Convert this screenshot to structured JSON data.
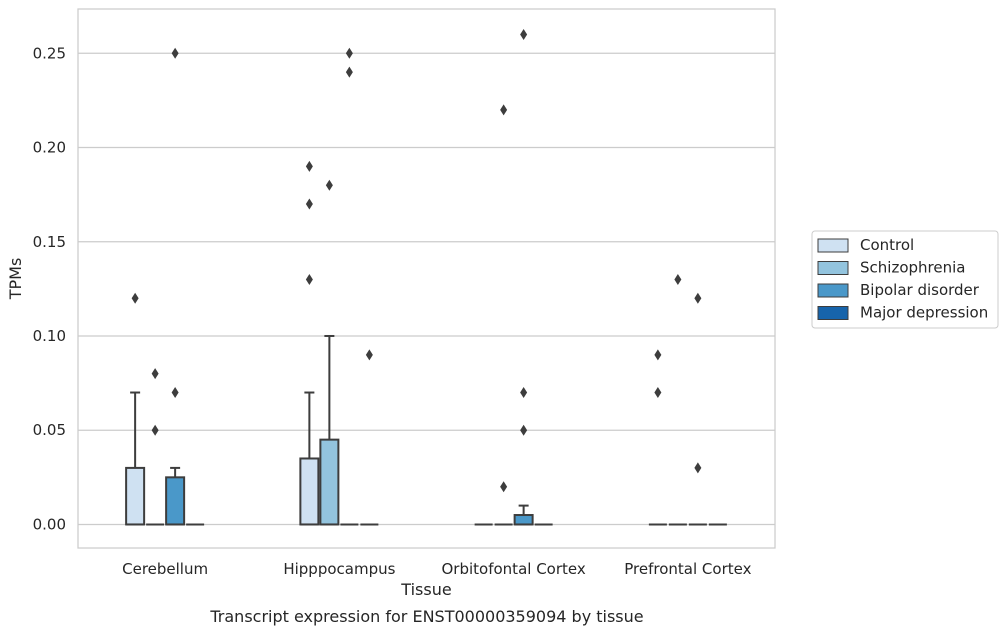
{
  "chart_data": {
    "type": "box",
    "title": "",
    "caption": "Transcript expression for ENST00000359094 by tissue",
    "xlabel": "Tissue",
    "ylabel": "TPMs",
    "ylim": [
      -0.0125,
      0.2735
    ],
    "yticks": [
      "0.00",
      "0.05",
      "0.10",
      "0.15",
      "0.20",
      "0.25"
    ],
    "ytick_values": [
      0,
      0.05,
      0.1,
      0.15,
      0.2,
      0.25
    ],
    "grid": true,
    "legend_position": "right",
    "categories": [
      "Cerebellum",
      "Hipppocampus",
      "Orbitofontal Cortex",
      "Prefrontal Cortex"
    ],
    "series": [
      {
        "name": "Control",
        "color": "#cfe1f2",
        "boxes": [
          {
            "q1": 0,
            "median": 0,
            "q3": 0.03,
            "whisker_low": 0,
            "whisker_high": 0.07,
            "outliers": [
              0.12
            ]
          },
          {
            "q1": 0,
            "median": 0,
            "q3": 0.035,
            "whisker_low": 0,
            "whisker_high": 0.07,
            "outliers": [
              0.13,
              0.17,
              0.19
            ]
          },
          {
            "q1": 0,
            "median": 0,
            "q3": 0,
            "whisker_low": 0,
            "whisker_high": 0,
            "outliers": []
          },
          {
            "q1": 0,
            "median": 0,
            "q3": 0,
            "whisker_low": 0,
            "whisker_high": 0,
            "outliers": [
              0.07,
              0.09
            ]
          }
        ]
      },
      {
        "name": "Schizophrenia",
        "color": "#93c4de",
        "boxes": [
          {
            "q1": 0,
            "median": 0,
            "q3": 0,
            "whisker_low": 0,
            "whisker_high": 0,
            "outliers": [
              0.05,
              0.08
            ]
          },
          {
            "q1": 0,
            "median": 0,
            "q3": 0.045,
            "whisker_low": 0,
            "whisker_high": 0.1,
            "outliers": [
              0.18
            ]
          },
          {
            "q1": 0,
            "median": 0,
            "q3": 0,
            "whisker_low": 0,
            "whisker_high": 0,
            "outliers": [
              0.02,
              0.22
            ]
          },
          {
            "q1": 0,
            "median": 0,
            "q3": 0,
            "whisker_low": 0,
            "whisker_high": 0,
            "outliers": [
              0.13
            ]
          }
        ]
      },
      {
        "name": "Bipolar disorder",
        "color": "#4a98c9",
        "boxes": [
          {
            "q1": 0,
            "median": 0,
            "q3": 0.025,
            "whisker_low": 0,
            "whisker_high": 0.03,
            "outliers": [
              0.07,
              0.25
            ]
          },
          {
            "q1": 0,
            "median": 0,
            "q3": 0,
            "whisker_low": 0,
            "whisker_high": 0,
            "outliers": [
              0.24,
              0.25
            ]
          },
          {
            "q1": 0,
            "median": 0,
            "q3": 0.005,
            "whisker_low": 0,
            "whisker_high": 0.01,
            "outliers": [
              0.05,
              0.07,
              0.26
            ]
          },
          {
            "q1": 0,
            "median": 0,
            "q3": 0,
            "whisker_low": 0,
            "whisker_high": 0,
            "outliers": [
              0.03,
              0.12
            ]
          }
        ]
      },
      {
        "name": "Major depression",
        "color": "#1764ab",
        "boxes": [
          {
            "q1": 0,
            "median": 0,
            "q3": 0,
            "whisker_low": 0,
            "whisker_high": 0,
            "outliers": []
          },
          {
            "q1": 0,
            "median": 0,
            "q3": 0,
            "whisker_low": 0,
            "whisker_high": 0,
            "outliers": [
              0.09
            ]
          },
          {
            "q1": 0,
            "median": 0,
            "q3": 0,
            "whisker_low": 0,
            "whisker_high": 0,
            "outliers": []
          },
          {
            "q1": 0,
            "median": 0,
            "q3": 0,
            "whisker_low": 0,
            "whisker_high": 0,
            "outliers": []
          }
        ]
      }
    ]
  }
}
